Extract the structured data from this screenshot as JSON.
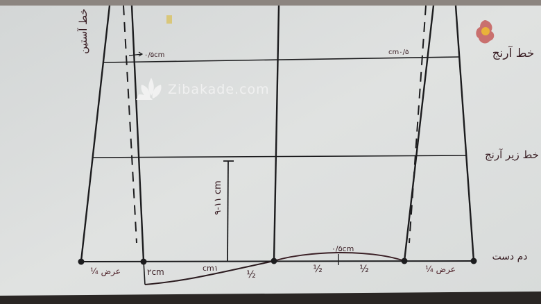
{
  "watermark": {
    "text": "Zibakade.com"
  },
  "labels": {
    "top_left_vertical": "خط آستین",
    "elbow_line": "خط آرنج",
    "below_elbow_line": "خط زیر آرنج",
    "wrist_line": "دم دست",
    "offset_left": "۰/۵cm",
    "offset_right": "cm۰/۵",
    "height_measure": "۹-۱۱ cm",
    "two_cm": "۲cm",
    "one_cm": "cm۱",
    "curve_peak": "۰/۵cm",
    "width_left": "عرض ¼",
    "width_right": "عرض ¼",
    "half_1": "½",
    "half_2": "½",
    "half_3": "½"
  },
  "colors": {
    "paper": "#dcdfde",
    "ink": "#1c1c1e",
    "handwriting": "#3a1f25",
    "logo_petal": "#c9706e",
    "logo_center": "#e9b23a"
  }
}
